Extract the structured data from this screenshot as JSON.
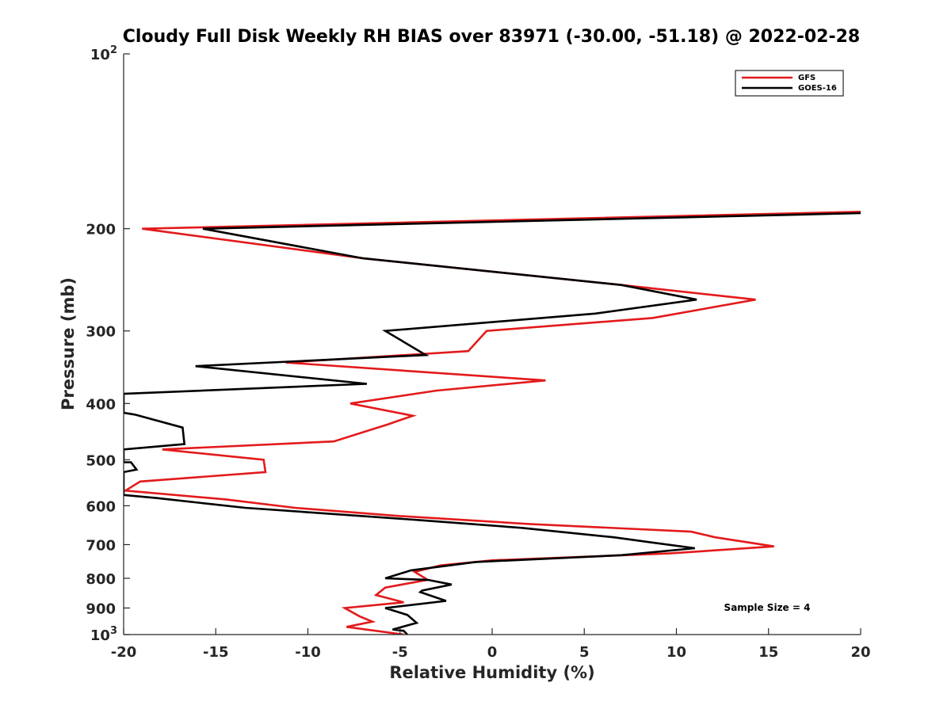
{
  "chart_data": {
    "type": "line",
    "title": "Cloudy Full Disk Weekly RH BIAS over 83971 (-30.00, -51.18) @ 2022-02-28",
    "xlabel": "Relative Humidity (%)",
    "ylabel": "Pressure (mb)",
    "xlim": [
      -20,
      20
    ],
    "ylim": [
      100,
      1000
    ],
    "yscale": "log",
    "y_reversed": true,
    "grid": false,
    "legend_position": "top-right",
    "x_ticks": [
      -20,
      -15,
      -10,
      -5,
      0,
      5,
      10,
      15,
      20
    ],
    "x_tick_labels": [
      "-20",
      "-15",
      "-10",
      "-5",
      "0",
      "5",
      "10",
      "15",
      "20"
    ],
    "y_ticks": [
      200,
      300,
      400,
      500,
      600,
      700,
      800,
      900
    ],
    "y_tick_labels": [
      "200",
      "300",
      "400",
      "500",
      "600",
      "700",
      "800",
      "900"
    ],
    "y_decade_labels": [
      {
        "value": 100,
        "base": "10",
        "exp": "2"
      },
      {
        "value": 1000,
        "base": "10",
        "exp": "3"
      }
    ],
    "annotation": "Sample Size = 4",
    "series": [
      {
        "name": "GFS",
        "color": "#e31a1c",
        "points": [
          [
            20,
            187
          ],
          [
            -19,
            200
          ],
          [
            -7,
            225
          ],
          [
            7,
            250
          ],
          [
            14.3,
            265
          ],
          [
            8.7,
            285
          ],
          [
            -0.3,
            300
          ],
          [
            -1.3,
            325
          ],
          [
            -11.2,
            340
          ],
          [
            2.9,
            365
          ],
          [
            -3,
            380
          ],
          [
            -7.7,
            400
          ],
          [
            -4.3,
            420
          ],
          [
            -5.7,
            435
          ],
          [
            -8.6,
            465
          ],
          [
            -17.9,
            480
          ],
          [
            -12.4,
            500
          ],
          [
            -12.3,
            525
          ],
          [
            -19.1,
            545
          ],
          [
            -19.9,
            565
          ],
          [
            -14.5,
            585
          ],
          [
            -10.7,
            605
          ],
          [
            -5,
            625
          ],
          [
            2,
            645
          ],
          [
            10.8,
            665
          ],
          [
            12.1,
            680
          ],
          [
            15.3,
            705
          ],
          [
            9.6,
            725
          ],
          [
            0,
            745
          ],
          [
            -2.8,
            760
          ],
          [
            -4.2,
            780
          ],
          [
            -3.5,
            805
          ],
          [
            -5.8,
            830
          ],
          [
            -6.3,
            855
          ],
          [
            -4.8,
            880
          ],
          [
            -8,
            900
          ],
          [
            -7.2,
            930
          ],
          [
            -6.5,
            950
          ],
          [
            -7.9,
            970
          ],
          [
            -4.8,
            1000
          ]
        ]
      },
      {
        "name": "GOES-16",
        "color": "#000000",
        "points": [
          [
            20,
            188
          ],
          [
            -15.7,
            200
          ],
          [
            -7,
            225
          ],
          [
            7,
            250
          ],
          [
            11.1,
            265
          ],
          [
            5.6,
            280
          ],
          [
            -5.8,
            300
          ],
          [
            -3.6,
            330
          ],
          [
            -16.1,
            345
          ],
          [
            -6.8,
            370
          ],
          [
            -20,
            385
          ],
          [
            -20,
            415
          ],
          [
            -19.4,
            418
          ],
          [
            -16.8,
            440
          ],
          [
            -16.7,
            470
          ],
          [
            -20,
            480
          ],
          [
            -20,
            505
          ],
          [
            -19.6,
            505
          ],
          [
            -19.3,
            520
          ],
          [
            -20,
            525
          ],
          [
            -20,
            575
          ],
          [
            -18.2,
            582
          ],
          [
            -13.4,
            605
          ],
          [
            -4,
            635
          ],
          [
            1.6,
            655
          ],
          [
            6.6,
            680
          ],
          [
            8.8,
            695
          ],
          [
            11,
            710
          ],
          [
            7,
            730
          ],
          [
            -0.9,
            750
          ],
          [
            -4.4,
            775
          ],
          [
            -5.8,
            800
          ],
          [
            -3.5,
            805
          ],
          [
            -2.2,
            820
          ],
          [
            -3.8,
            840
          ],
          [
            -3.9,
            845
          ],
          [
            -2.5,
            875
          ],
          [
            -5.8,
            900
          ],
          [
            -4.6,
            925
          ],
          [
            -4.1,
            955
          ],
          [
            -5.4,
            980
          ],
          [
            -4.8,
            985
          ],
          [
            -4.6,
            1000
          ]
        ]
      }
    ]
  }
}
